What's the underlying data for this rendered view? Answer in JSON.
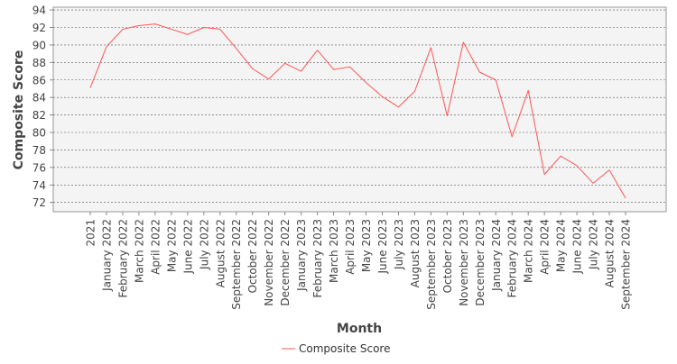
{
  "chart_data": {
    "type": "line",
    "xlabel": "Month",
    "ylabel": "Composite Score",
    "ylim": [
      71,
      95
    ],
    "yticks": [
      72,
      74,
      76,
      78,
      80,
      82,
      84,
      86,
      88,
      90,
      92,
      94
    ],
    "grid": true,
    "legend_position": "bottom-center",
    "categories": [
      "2021",
      "January 2022",
      "February 2022",
      "March 2022",
      "April 2022",
      "May 2022",
      "June 2022",
      "July 2022",
      "August 2022",
      "September 2022",
      "October 2022",
      "November 2022",
      "December 2022",
      "January 2023",
      "February 2023",
      "March 2023",
      "April 2023",
      "May 2023",
      "June 2023",
      "July 2023",
      "August 2023",
      "September 2023",
      "October 2023",
      "November 2023",
      "December 2023",
      "January 2024",
      "February 2024",
      "March 2024",
      "April 2024",
      "May 2024",
      "June 2024",
      "July 2024",
      "August 2024",
      "September 2024"
    ],
    "series": [
      {
        "name": "Composite Score",
        "color": "#ff5555",
        "values": [
          85.1,
          89.8,
          91.8,
          92.2,
          92.4,
          91.8,
          91.2,
          92.0,
          91.8,
          89.6,
          87.3,
          86.1,
          87.9,
          87.0,
          89.4,
          87.2,
          87.5,
          85.7,
          84.1,
          82.9,
          84.7,
          89.7,
          81.9,
          90.3,
          86.9,
          86.0,
          79.5,
          84.8,
          75.2,
          77.3,
          76.2,
          74.2,
          75.7,
          72.5
        ]
      }
    ]
  }
}
